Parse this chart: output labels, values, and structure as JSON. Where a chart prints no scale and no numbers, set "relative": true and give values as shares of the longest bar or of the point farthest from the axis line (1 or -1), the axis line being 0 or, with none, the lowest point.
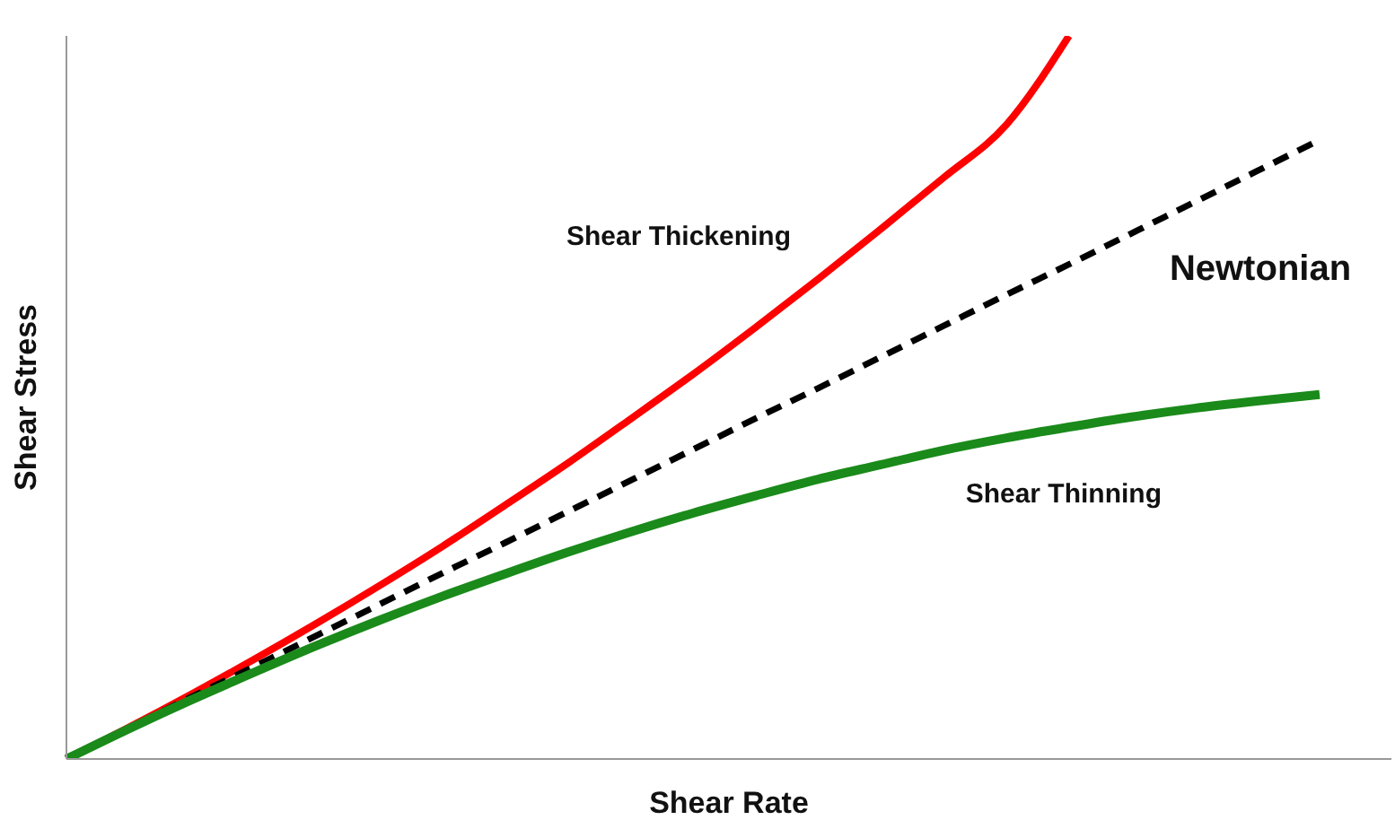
{
  "chart_data": {
    "type": "line",
    "relative": true,
    "xlabel": "Shear Rate",
    "ylabel": "Shear Stress",
    "marker": "none",
    "categories": [
      null,
      null,
      null,
      null,
      null,
      null,
      null,
      null,
      null,
      null,
      null,
      null,
      null,
      null,
      null,
      null,
      null,
      null,
      null,
      null,
      null
    ],
    "series": [
      {
        "name": "Shear Thickening",
        "color": "#ff0000",
        "line_style": "solid",
        "values": [
          0,
          0.044,
          0.09,
          0.138,
          0.188,
          0.24,
          0.294,
          0.351,
          0.409,
          0.47,
          0.532,
          0.597,
          0.664,
          0.733,
          0.804,
          0.877,
          1,
          null,
          null,
          null,
          null
        ]
      },
      {
        "name": "Newtonian",
        "color": "#000000",
        "line_style": "dashed",
        "values": [
          0,
          0.043,
          0.086,
          0.128,
          0.171,
          0.214,
          0.257,
          0.299,
          0.342,
          0.385,
          0.428,
          0.471,
          0.513,
          0.556,
          0.599,
          0.642,
          0.684,
          0.727,
          0.77,
          0.813,
          0.856
        ]
      },
      {
        "name": "Shear Thinning",
        "color": "#1a8a1a",
        "line_style": "solid",
        "values": [
          0,
          0.042,
          0.082,
          0.12,
          0.157,
          0.192,
          0.225,
          0.256,
          0.286,
          0.314,
          0.34,
          0.364,
          0.387,
          0.407,
          0.427,
          0.444,
          0.459,
          0.473,
          0.485,
          0.495,
          0.504
        ]
      }
    ]
  }
}
